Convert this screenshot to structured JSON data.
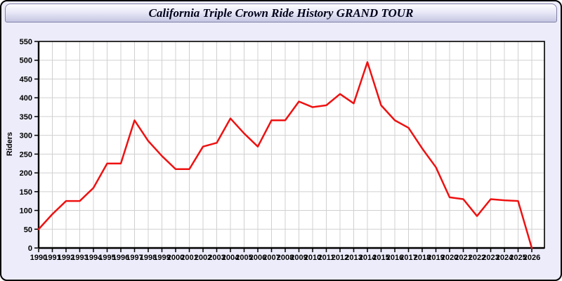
{
  "window": {
    "title": "California Triple Crown Ride History GRAND TOUR"
  },
  "colors": {
    "line": "#ee1111",
    "plot_bg": "#ffffff",
    "grid": "#d0d0d0",
    "axis": "#000000",
    "window_bg": "#ececfa",
    "titlebar_border": "#8080a8",
    "titlebar_gradient_top": "#fdfdff",
    "titlebar_gradient_bottom": "#c5c5e2"
  },
  "chart_data": {
    "type": "line",
    "title": "California Triple Crown Ride History GRAND TOUR",
    "xlabel": "",
    "ylabel": "Riders",
    "x": [
      1990,
      1991,
      1992,
      1993,
      1994,
      1995,
      1996,
      1997,
      1998,
      1999,
      2000,
      2001,
      2002,
      2003,
      2004,
      2005,
      2006,
      2007,
      2008,
      2009,
      2010,
      2011,
      2012,
      2013,
      2014,
      2015,
      2016,
      2017,
      2018,
      2019,
      2020,
      2021,
      2022,
      2023,
      2024,
      2025,
      2026
    ],
    "series": [
      {
        "name": "Riders",
        "values": [
          50,
          90,
          125,
          125,
          160,
          225,
          225,
          340,
          285,
          245,
          210,
          210,
          270,
          280,
          345,
          305,
          270,
          340,
          340,
          390,
          375,
          380,
          410,
          385,
          495,
          380,
          340,
          320,
          265,
          215,
          135,
          130,
          85,
          130,
          127,
          125,
          0
        ]
      }
    ],
    "ylim": [
      0,
      550
    ],
    "ytick_step": 50,
    "grid": true,
    "legend": false
  }
}
